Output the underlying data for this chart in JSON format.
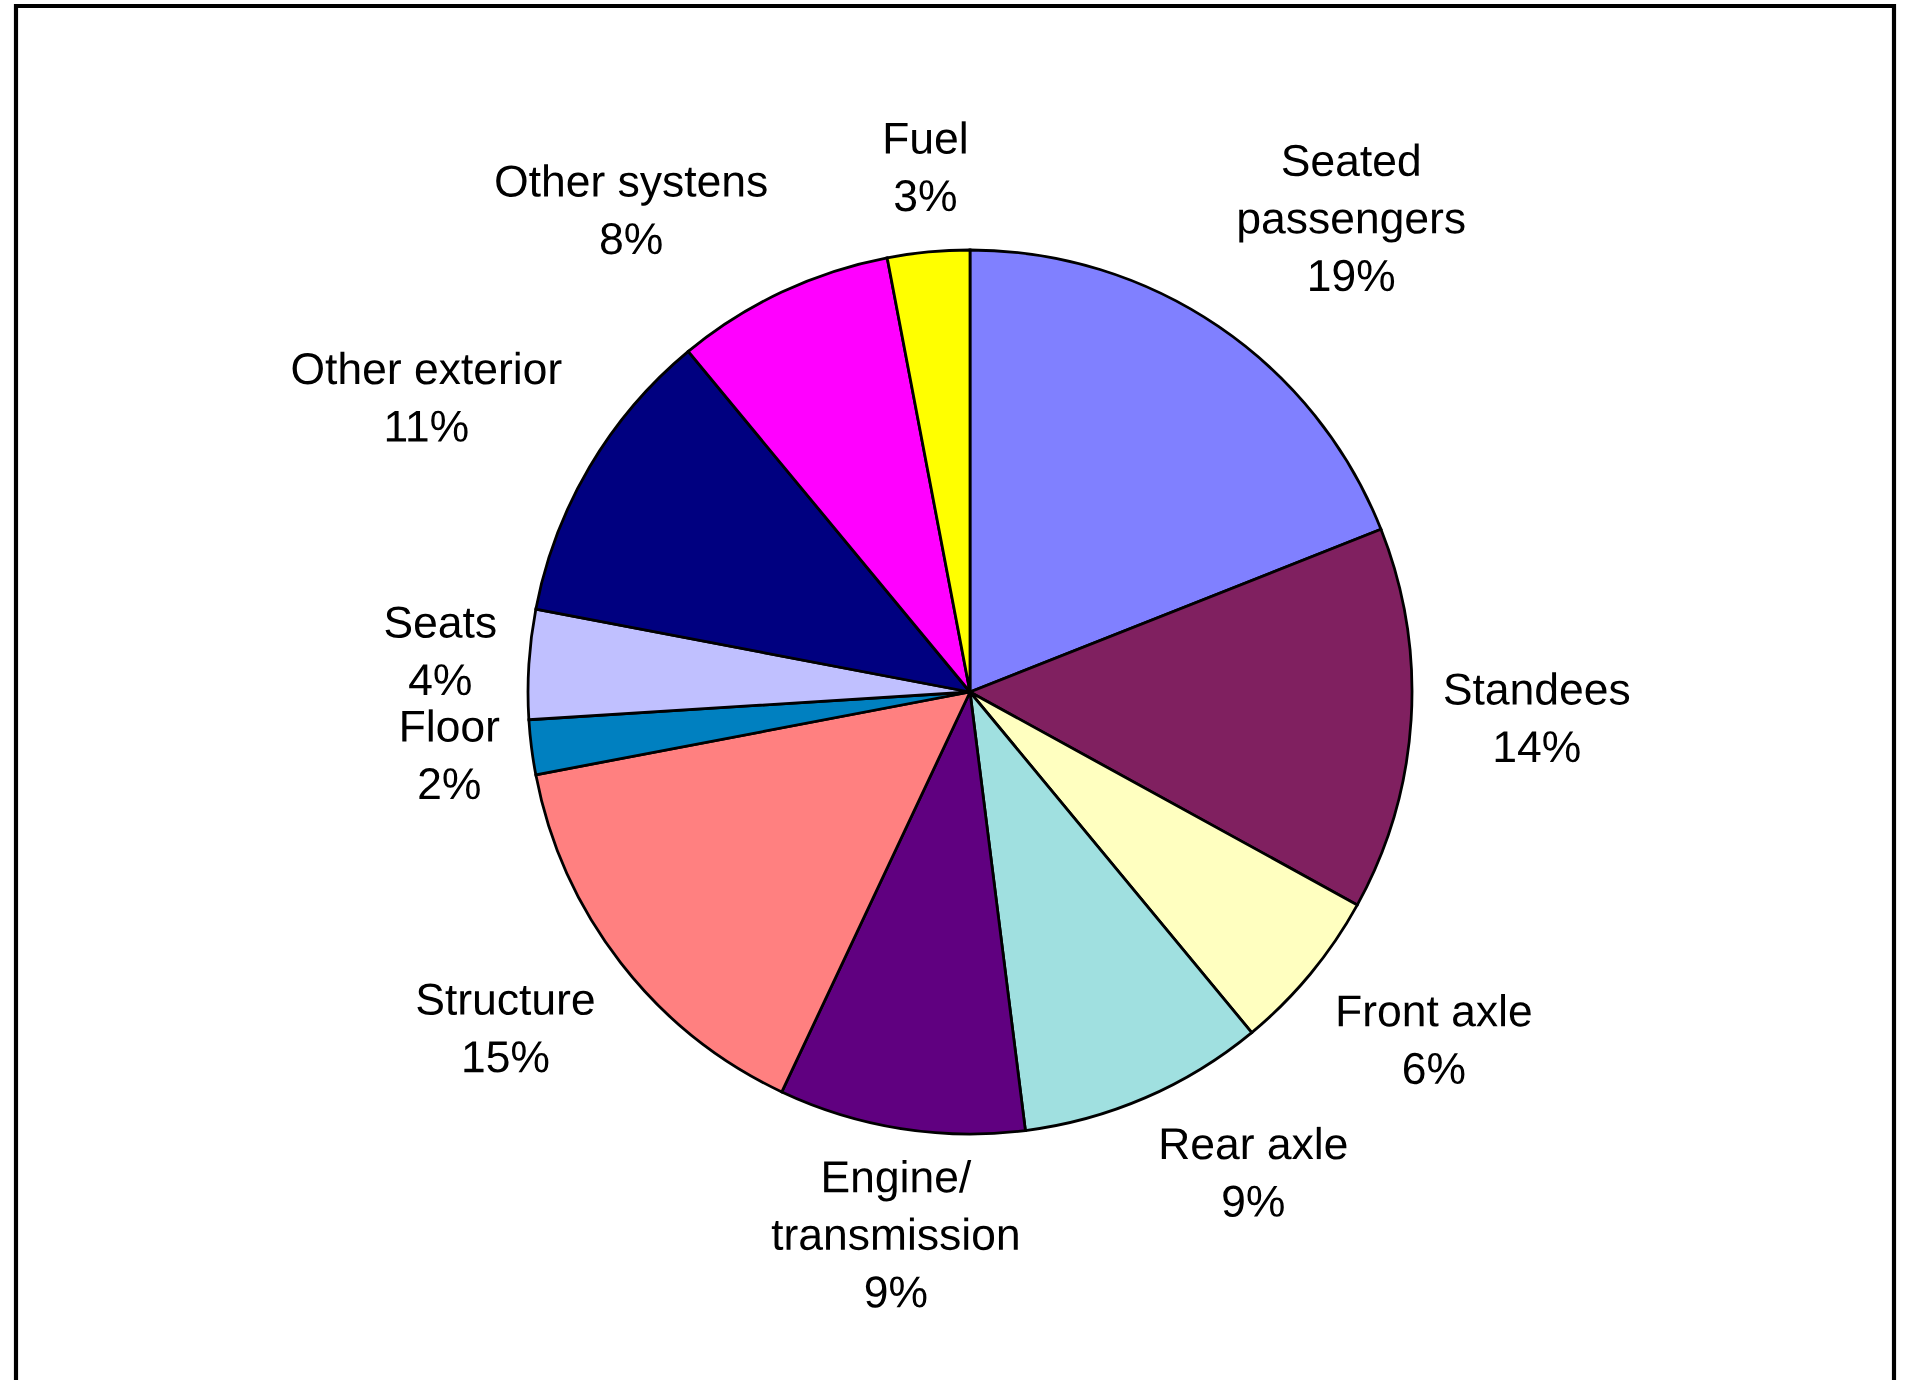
{
  "chart_data": {
    "type": "pie",
    "categories": [
      "Seated\npassengers",
      "Standees",
      "Front axle",
      "Rear axle",
      "Engine/\ntransmission",
      "Structure",
      "Floor",
      "Seats",
      "Other exterior",
      "Other systens",
      "Fuel"
    ],
    "values": [
      19,
      14,
      6,
      9,
      9,
      15,
      2,
      4,
      11,
      8,
      3
    ],
    "colors": [
      "#8080ff",
      "#802060",
      "#ffffc0",
      "#a0e0e0",
      "#600080",
      "#ff8080",
      "#0080c0",
      "#c0c0ff",
      "#000080",
      "#ff00ff",
      "#ffff00"
    ],
    "value_labels": [
      "19%",
      "14%",
      "6%",
      "9%",
      "9%",
      "15%",
      "2%",
      "4%",
      "11%",
      "8%",
      "3%"
    ]
  }
}
